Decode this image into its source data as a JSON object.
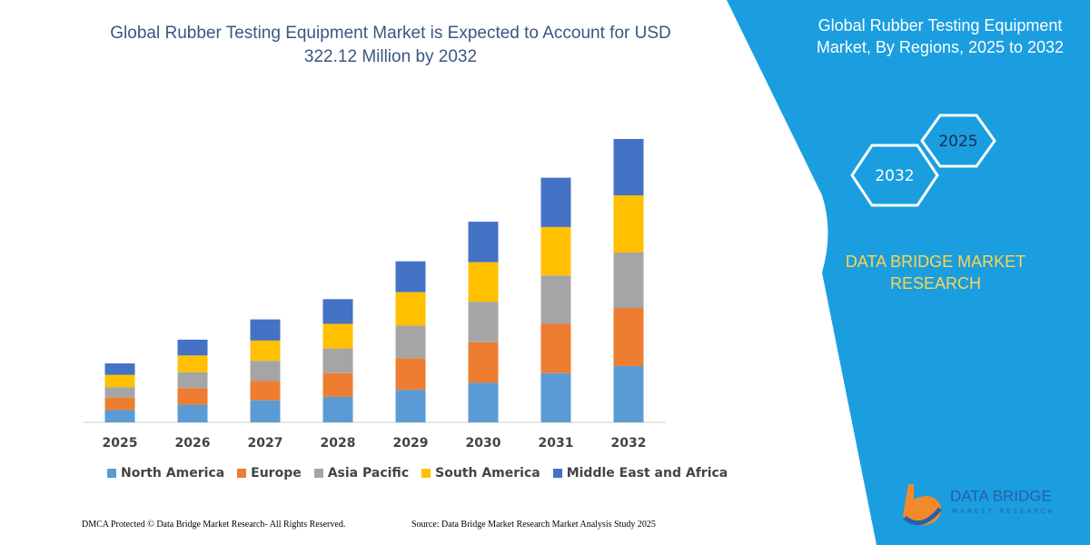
{
  "chart_data": {
    "type": "stacked_bar",
    "title": "Global Rubber Testing Equipment Market is Expected to Account for USD 322.12 Million by 2032",
    "categories": [
      "2025",
      "2026",
      "2027",
      "2028",
      "2029",
      "2030",
      "2031",
      "2032"
    ],
    "series": [
      {
        "name": "North America",
        "color": "#5b9bd5",
        "values": [
          14,
          20,
          25,
          29,
          37,
          45,
          56,
          64
        ]
      },
      {
        "name": "Europe",
        "color": "#ed7d31",
        "values": [
          14,
          19,
          22,
          27,
          36,
          46,
          56,
          66
        ]
      },
      {
        "name": "Asia Pacific",
        "color": "#a5a5a5",
        "values": [
          12,
          18,
          23,
          28,
          37,
          46,
          55,
          63
        ]
      },
      {
        "name": "South America",
        "color": "#ffc000",
        "values": [
          14,
          19,
          23,
          28,
          38,
          45,
          55,
          65
        ]
      },
      {
        "name": "Middle East and Africa",
        "color": "#4472c4",
        "values": [
          13,
          18,
          24,
          28,
          35,
          46,
          56,
          64
        ]
      }
    ],
    "legend": "bottom"
  },
  "panel": {
    "title": "Global Rubber Testing Equipment Market, By Regions, 2025 to 2032",
    "hexagons": [
      "2025",
      "2032"
    ],
    "brand": "DATA BRIDGE MARKET RESEARCH"
  },
  "logo": {
    "name": "DATA BRIDGE",
    "tagline": "MARKET RESEARCH"
  },
  "footer": {
    "left": "DMCA Protected © Data Bridge Market Research- All Rights Reserved.",
    "right": "Source: Data Bridge Market Research  Market Analysis Study 2025"
  }
}
